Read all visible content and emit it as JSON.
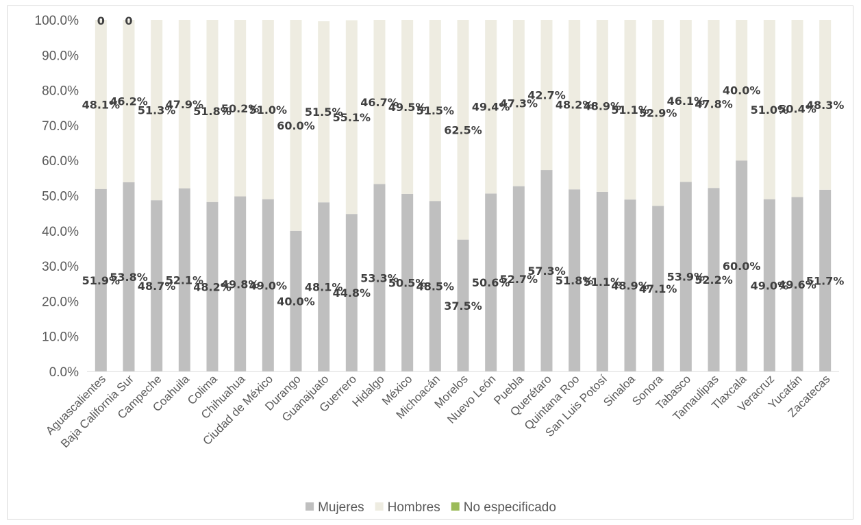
{
  "chart_data": {
    "type": "bar",
    "stacked": true,
    "percent_axis": true,
    "categories": [
      "Aguascalientes",
      "Baja California Sur",
      "Campeche",
      "Coahuila",
      "Colima",
      "Chihuahua",
      "Ciudad de México",
      "Durango",
      "Guanajuato",
      "Guerrero",
      "Hidalgo",
      "México",
      "Michoacán",
      "Morelos",
      "Nuevo León",
      "Puebla",
      "Querétaro",
      "Quintana Roo",
      "San Luis Potosí",
      "Sinaloa",
      "Sonora",
      "Tabasco",
      "Tamaulipas",
      "Tlaxcala",
      "Veracruz",
      "Yucatán",
      "Zacatecas"
    ],
    "series": [
      {
        "name": "Mujeres",
        "color": "#bfbfbf",
        "values": [
          51.9,
          53.8,
          48.7,
          52.1,
          48.2,
          49.8,
          49.0,
          40.0,
          48.1,
          44.8,
          53.3,
          50.5,
          48.5,
          37.5,
          50.6,
          52.7,
          57.3,
          51.8,
          51.1,
          48.9,
          47.1,
          53.9,
          52.2,
          60.0,
          49.0,
          49.6,
          51.7
        ],
        "labels": [
          "51.9%",
          "53.8%",
          "48.7%",
          "52.1%",
          "48.2%",
          "49.8%",
          "49.0%",
          "40.0%",
          "48.1%",
          "44.8%",
          "53.3%",
          "50.5%",
          "48.5%",
          "37.5%",
          "50.6%",
          "52.7%",
          "57.3%",
          "51.8%",
          "51.1%",
          "48.9%",
          "47.1%",
          "53.9%",
          "52.2%",
          "60.0%",
          "49.0%",
          "49.6%",
          "51.7%"
        ]
      },
      {
        "name": "Hombres",
        "color": "#eeece1",
        "values": [
          48.1,
          46.2,
          51.3,
          47.9,
          51.8,
          50.2,
          51.0,
          60.0,
          51.5,
          55.1,
          46.7,
          49.5,
          51.5,
          62.5,
          49.4,
          47.3,
          42.7,
          48.2,
          48.9,
          51.1,
          52.9,
          46.1,
          47.8,
          40.0,
          51.0,
          50.4,
          48.3
        ],
        "labels": [
          "48.1%",
          "46.2%",
          "51.3%",
          "47.9%",
          "51.8%",
          "50.2%",
          "51.0%",
          "60.0%",
          "51.5%",
          "55.1%",
          "46.7%",
          "49.5%",
          "51.5%",
          "62.5%",
          "49.4%",
          "47.3%",
          "42.7%",
          "48.2%",
          "48.9%",
          "51.1%",
          "52.9%",
          "46.1%",
          "47.8%",
          "40.0%",
          "51.0%",
          "50.4%",
          "48.3%"
        ]
      },
      {
        "name": "No especificado",
        "color": "#9bbb59",
        "values": [
          0,
          0,
          0,
          0,
          0,
          0,
          0,
          0,
          0,
          0,
          0,
          0,
          0,
          0,
          0,
          0,
          0,
          0,
          0,
          0,
          0,
          0,
          0,
          0,
          0,
          0,
          0
        ],
        "labels": [
          "0",
          "0",
          "",
          "",
          "",
          "",
          "",
          "",
          "",
          "",
          "",
          "",
          "",
          "",
          "",
          "",
          "",
          "",
          "",
          "",
          "",
          "",
          "",
          "",
          "",
          "",
          ""
        ]
      }
    ],
    "yticks": [
      "0.0%",
      "10.0%",
      "20.0%",
      "30.0%",
      "40.0%",
      "50.0%",
      "60.0%",
      "70.0%",
      "80.0%",
      "90.0%",
      "100.0%"
    ],
    "ylim": [
      0,
      100
    ],
    "grid": false,
    "legend_position": "bottom"
  }
}
